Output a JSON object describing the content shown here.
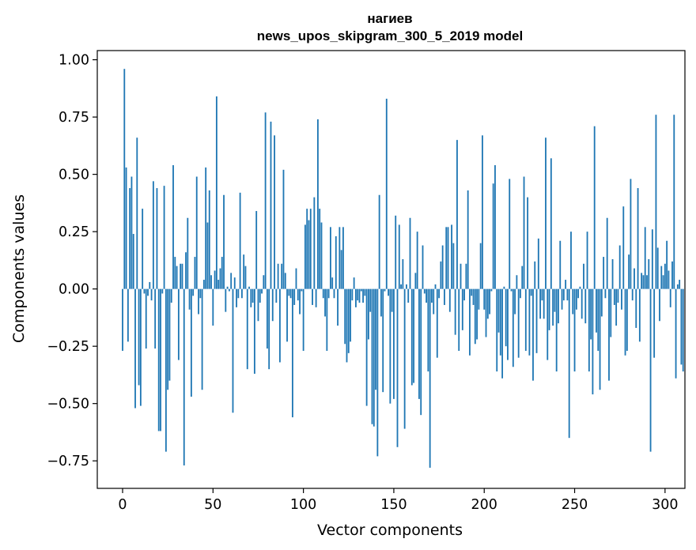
{
  "chart_data": {
    "type": "bar",
    "title_line1": "нагиев",
    "title_line2": "news_upos_skipgram_300_5_2019 model",
    "xlabel": "Vector components",
    "ylabel": "Components values",
    "xlim": [
      -14,
      311
    ],
    "ylim": [
      -0.87,
      1.04
    ],
    "xticks": [
      0,
      50,
      100,
      150,
      200,
      250,
      300
    ],
    "xtick_labels": [
      "0",
      "50",
      "100",
      "150",
      "200",
      "250",
      "300"
    ],
    "yticks": [
      -0.75,
      -0.5,
      -0.25,
      0.0,
      0.25,
      0.5,
      0.75,
      1.0
    ],
    "ytick_labels": [
      "−0.75",
      "−0.50",
      "−0.25",
      "0.00",
      "0.25",
      "0.50",
      "0.75",
      "1.00"
    ],
    "bar_color": "#1f77b4",
    "series_name": "нагиев",
    "values": [
      -0.27,
      0.96,
      0.53,
      -0.23,
      0.44,
      0.49,
      0.24,
      -0.52,
      0.66,
      -0.42,
      -0.51,
      0.35,
      -0.02,
      -0.26,
      -0.03,
      0.03,
      -0.05,
      0.47,
      -0.26,
      0.44,
      -0.62,
      -0.62,
      -0.02,
      0.45,
      -0.71,
      -0.44,
      -0.4,
      -0.06,
      0.54,
      0.14,
      0.1,
      -0.31,
      0.11,
      0.11,
      -0.77,
      0.16,
      0.31,
      -0.09,
      -0.47,
      -0.03,
      0.14,
      0.49,
      -0.11,
      -0.04,
      -0.44,
      0.04,
      0.53,
      0.29,
      0.43,
      0.06,
      -0.16,
      0.08,
      0.84,
      0.04,
      0.09,
      0.14,
      0.41,
      -0.1,
      0.01,
      -0.01,
      0.07,
      -0.54,
      0.05,
      -0.08,
      -0.04,
      0.42,
      -0.04,
      0.15,
      0.1,
      -0.35,
      0.01,
      -0.08,
      -0.06,
      -0.37,
      0.34,
      -0.14,
      -0.06,
      -0.02,
      0.06,
      0.77,
      -0.26,
      -0.35,
      0.73,
      -0.14,
      0.67,
      -0.06,
      0.11,
      -0.32,
      0.11,
      0.52,
      0.07,
      -0.23,
      -0.03,
      -0.04,
      -0.56,
      -0.07,
      0.09,
      -0.05,
      -0.11,
      -0.01,
      -0.27,
      0.28,
      0.35,
      0.3,
      0.35,
      -0.07,
      0.4,
      -0.08,
      0.74,
      0.35,
      0.29,
      -0.04,
      -0.12,
      -0.27,
      -0.04,
      0.27,
      0.05,
      -0.04,
      0.23,
      -0.16,
      0.27,
      0.17,
      0.27,
      -0.24,
      -0.32,
      -0.28,
      -0.23,
      -0.05,
      0.05,
      -0.08,
      -0.05,
      -0.06,
      -0.01,
      -0.06,
      -0.03,
      -0.51,
      -0.22,
      -0.1,
      -0.59,
      -0.6,
      -0.44,
      -0.73,
      0.41,
      -0.12,
      -0.45,
      -0.01,
      0.83,
      -0.03,
      -0.5,
      -0.1,
      -0.48,
      0.32,
      -0.69,
      0.28,
      0.02,
      0.13,
      -0.61,
      0.02,
      -0.06,
      0.31,
      -0.42,
      -0.41,
      0.07,
      0.25,
      -0.48,
      -0.55,
      0.19,
      -0.02,
      -0.06,
      -0.36,
      -0.78,
      -0.06,
      -0.11,
      0.02,
      -0.3,
      -0.04,
      0.12,
      0.19,
      -0.07,
      0.27,
      0.27,
      -0.1,
      0.28,
      0.2,
      -0.2,
      0.65,
      -0.27,
      0.11,
      -0.18,
      -0.05,
      0.11,
      0.43,
      -0.29,
      -0.03,
      -0.07,
      -0.24,
      -0.22,
      -0.09,
      0.2,
      0.67,
      -0.09,
      -0.21,
      -0.13,
      -0.11,
      -0.01,
      0.46,
      0.54,
      -0.36,
      -0.19,
      -0.29,
      -0.39,
      0.01,
      -0.25,
      -0.31,
      0.48,
      -0.01,
      -0.34,
      -0.11,
      0.06,
      -0.3,
      -0.04,
      0.1,
      0.49,
      -0.27,
      0.4,
      -0.29,
      -0.03,
      -0.4,
      0.12,
      -0.28,
      0.22,
      -0.13,
      -0.05,
      -0.13,
      0.66,
      -0.31,
      -0.18,
      0.57,
      -0.16,
      -0.1,
      -0.36,
      -0.15,
      0.21,
      -0.09,
      -0.05,
      0.04,
      -0.05,
      -0.65,
      0.25,
      -0.11,
      -0.36,
      -0.09,
      -0.04,
      0.01,
      -0.13,
      0.11,
      -0.15,
      0.25,
      -0.36,
      -0.22,
      -0.46,
      0.71,
      -0.19,
      -0.27,
      -0.44,
      -0.12,
      0.14,
      -0.04,
      0.31,
      -0.4,
      -0.21,
      0.13,
      -0.07,
      -0.16,
      -0.06,
      0.19,
      -0.09,
      0.36,
      -0.29,
      -0.27,
      0.15,
      0.48,
      -0.05,
      0.09,
      -0.17,
      0.44,
      -0.23,
      0.07,
      0.06,
      0.27,
      0.06,
      0.13,
      -0.71,
      0.26,
      -0.3,
      0.76,
      0.18,
      -0.14,
      0.1,
      0.06,
      0.11,
      0.21,
      0.08,
      -0.08,
      0.12,
      0.76,
      -0.39,
      0.02,
      0.04,
      -0.33,
      -0.36
    ]
  }
}
